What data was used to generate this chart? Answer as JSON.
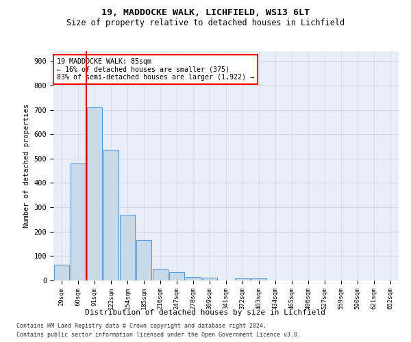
{
  "title1": "19, MADDOCKE WALK, LICHFIELD, WS13 6LT",
  "title2": "Size of property relative to detached houses in Lichfield",
  "xlabel": "Distribution of detached houses by size in Lichfield",
  "ylabel": "Number of detached properties",
  "categories": [
    "29sqm",
    "60sqm",
    "91sqm",
    "122sqm",
    "154sqm",
    "185sqm",
    "216sqm",
    "247sqm",
    "278sqm",
    "309sqm",
    "341sqm",
    "372sqm",
    "403sqm",
    "434sqm",
    "465sqm",
    "496sqm",
    "527sqm",
    "559sqm",
    "590sqm",
    "621sqm",
    "652sqm"
  ],
  "values": [
    65,
    480,
    710,
    535,
    270,
    165,
    48,
    33,
    15,
    12,
    0,
    8,
    8,
    0,
    0,
    0,
    0,
    0,
    0,
    0,
    0
  ],
  "bar_color": "#c9d9e8",
  "bar_edge_color": "#5b9bd5",
  "red_line_color": "#cc0000",
  "annotation_text": "19 MADDOCKE WALK: 85sqm\n← 16% of detached houses are smaller (375)\n83% of semi-detached houses are larger (1,922) →",
  "annotation_box_color": "white",
  "annotation_box_edge_color": "red",
  "ylim": [
    0,
    940
  ],
  "yticks": [
    0,
    100,
    200,
    300,
    400,
    500,
    600,
    700,
    800,
    900
  ],
  "grid_color": "#d0d8e8",
  "bg_color": "#e8eef5",
  "footnote1": "Contains HM Land Registry data © Crown copyright and database right 2024.",
  "footnote2": "Contains public sector information licensed under the Open Government Licence v3.0."
}
